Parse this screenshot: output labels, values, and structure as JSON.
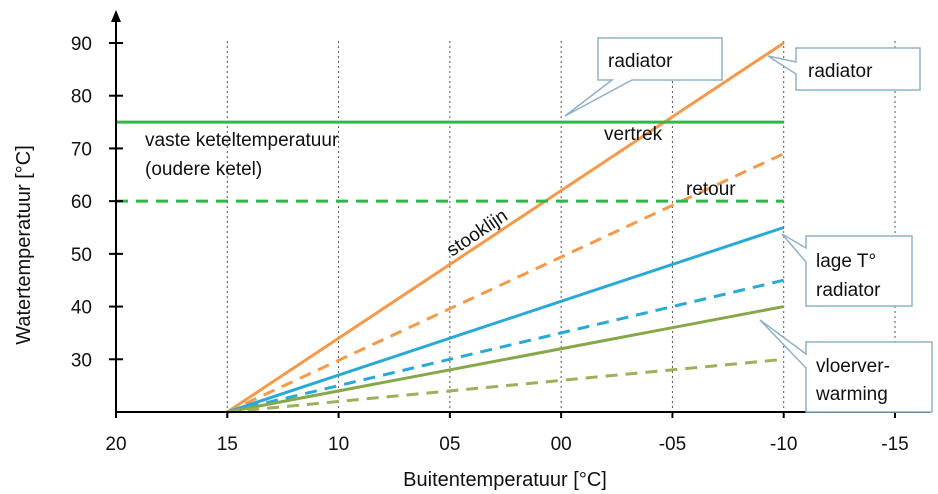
{
  "chart_data": {
    "type": "line",
    "xlabel": "Buitentemperatuur [°C]",
    "ylabel": "Watertemperatuur [°C]",
    "xlim": [
      20,
      -17
    ],
    "ylim": [
      20,
      93
    ],
    "x_ticks": [
      "20",
      "15",
      "10",
      "05",
      "00",
      "-05",
      "-10",
      "-15"
    ],
    "x_tick_values": [
      20,
      15,
      10,
      5,
      0,
      -5,
      -10,
      -15
    ],
    "y_ticks": [
      30,
      40,
      50,
      60,
      70,
      80,
      90
    ],
    "grid": {
      "x": true,
      "y": false,
      "style": "dotted"
    },
    "series": [
      {
        "color": "#f59a4a",
        "dashed": false,
        "x": [
          15,
          -10
        ],
        "y": [
          20,
          90
        ]
      },
      {
        "color": "#f59a4a",
        "dashed": true,
        "x": [
          15,
          -10
        ],
        "y": [
          20,
          69
        ]
      },
      {
        "color": "#2aa9d6",
        "dashed": false,
        "x": [
          15,
          -10
        ],
        "y": [
          20,
          55
        ]
      },
      {
        "color": "#2aa9d6",
        "dashed": true,
        "x": [
          15,
          -10
        ],
        "y": [
          20,
          45
        ]
      },
      {
        "color": "#86a84a",
        "dashed": false,
        "x": [
          15,
          -10
        ],
        "y": [
          20,
          40
        ]
      },
      {
        "color": "#9bb25a",
        "dashed": true,
        "x": [
          15,
          -10
        ],
        "y": [
          20,
          30
        ]
      },
      {
        "color": "#33b54a",
        "dashed": false,
        "x": [
          20,
          -10
        ],
        "y": [
          75,
          75
        ]
      },
      {
        "color": "#33b54a",
        "dashed": true,
        "x": [
          20,
          -10
        ],
        "y": [
          60,
          60
        ]
      }
    ],
    "annotations": {
      "vaste_line1": "vaste keteltemperatuur",
      "vaste_line2": "(oudere ketel)",
      "vertrek": "vertrek",
      "retour": "retour",
      "stooklijn": "stooklijn"
    },
    "callouts": {
      "radiator_top": "radiator",
      "radiator_right": "radiator",
      "lage_line1": "lage T°",
      "lage_line2": "radiator",
      "vloer_line1": "vloerver-",
      "vloer_line2": "warming"
    }
  }
}
